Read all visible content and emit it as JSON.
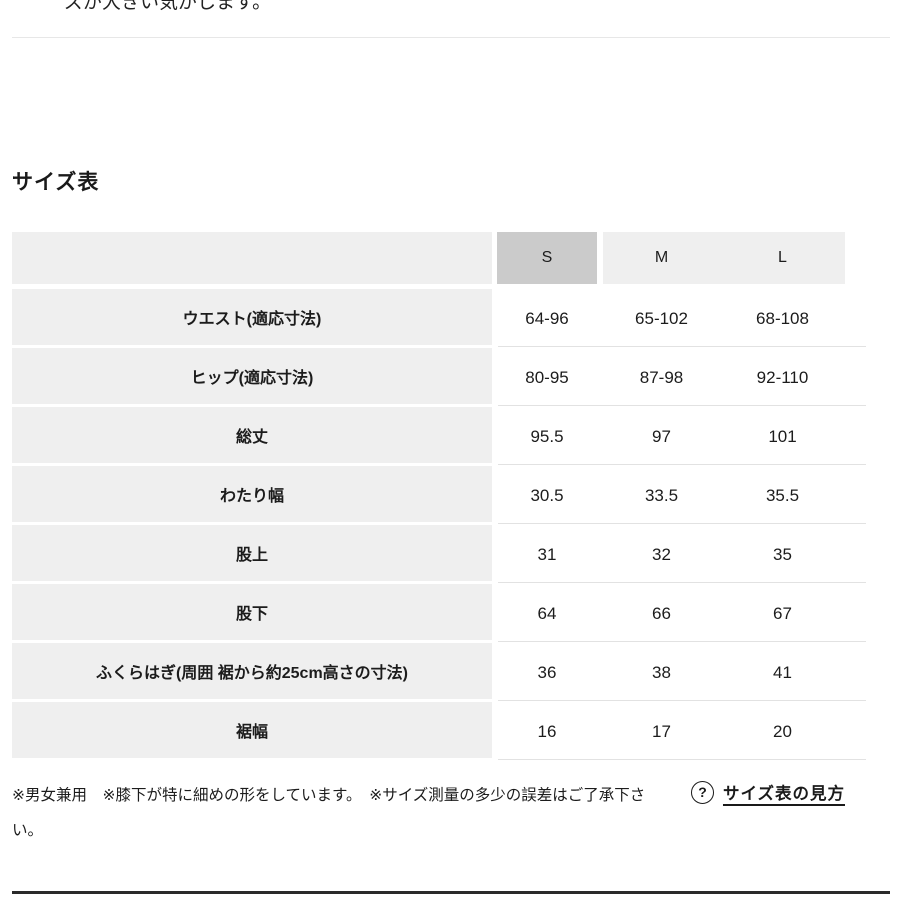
{
  "page": {
    "top_partial_text": "ズが大きい気がします。",
    "section_title": "サイズ表"
  },
  "size_table": {
    "column_headers": [
      "S",
      "M",
      "L"
    ],
    "highlighted_column": "S",
    "rows": [
      {
        "label": "ウエスト(適応寸法)",
        "s": "64-96",
        "m": "65-102",
        "l": "68-108"
      },
      {
        "label": "ヒップ(適応寸法)",
        "s": "80-95",
        "m": "87-98",
        "l": "92-110"
      },
      {
        "label": "総丈",
        "s": "95.5",
        "m": "97",
        "l": "101"
      },
      {
        "label": "わたり幅",
        "s": "30.5",
        "m": "33.5",
        "l": "35.5"
      },
      {
        "label": "股上",
        "s": "31",
        "m": "32",
        "l": "35"
      },
      {
        "label": "股下",
        "s": "64",
        "m": "66",
        "l": "67"
      },
      {
        "label": "ふくらはぎ(周囲 裾から約25cm高さの寸法)",
        "s": "36",
        "m": "38",
        "l": "41"
      },
      {
        "label": "裾幅",
        "s": "16",
        "m": "17",
        "l": "20"
      }
    ]
  },
  "footer": {
    "notes": "※男女兼用　※膝下が特に細めの形をしています。　※サイズ測量の多少の誤差はご了承下さい。",
    "help_icon_glyph": "?",
    "help_link_label": "サイズ表の見方"
  },
  "colors": {
    "highlight_cell": "#cbcbcb",
    "table_shade": "#efefef",
    "separator": "#e2e2e2",
    "text": "#1c1c1c"
  }
}
